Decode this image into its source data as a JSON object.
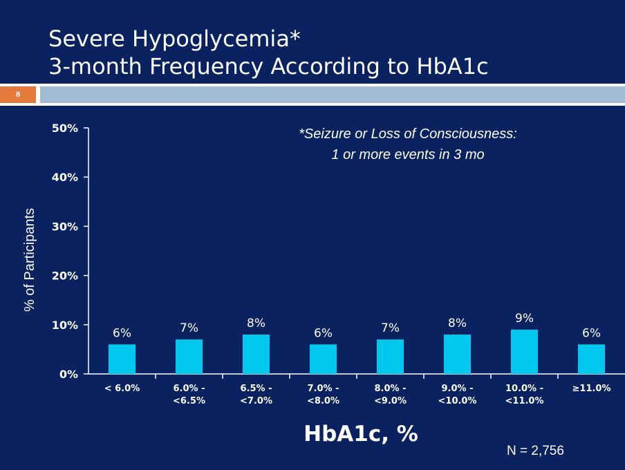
{
  "slide": {
    "title_line1": "Severe Hypoglycemia*",
    "title_line2": "3-month Frequency According to HbA1c",
    "slide_number": "8",
    "footnote_line1": "*Seizure or Loss of Consciousness:",
    "footnote_line2": "1 or more events in 3 mo",
    "sample_size": "N = 2,756"
  },
  "colors": {
    "background": "#0b2260",
    "bar": "#00c8ee",
    "accent": "#a3bcd6",
    "slide_number_bg": "#e57a3c"
  },
  "chart_data": {
    "type": "bar",
    "title": "",
    "xlabel": "HbA1c, %",
    "ylabel": "% of Participants",
    "ylim": [
      0,
      50
    ],
    "yticks": [
      "0%",
      "10%",
      "20%",
      "30%",
      "40%",
      "50%"
    ],
    "grid": false,
    "categories": [
      [
        "< 6.0%"
      ],
      [
        "6.0% -",
        "<6.5%"
      ],
      [
        "6.5% -",
        "<7.0%"
      ],
      [
        "7.0% -",
        "<8.0%"
      ],
      [
        "8.0% -",
        "<9.0%"
      ],
      [
        "9.0% -",
        "<10.0%"
      ],
      [
        "10.0% -",
        "<11.0%"
      ],
      [
        "≥11.0%"
      ]
    ],
    "values": [
      6,
      7,
      8,
      6,
      7,
      8,
      9,
      6
    ],
    "value_labels": [
      "6%",
      "7%",
      "8%",
      "6%",
      "7%",
      "8%",
      "9%",
      "6%"
    ]
  }
}
